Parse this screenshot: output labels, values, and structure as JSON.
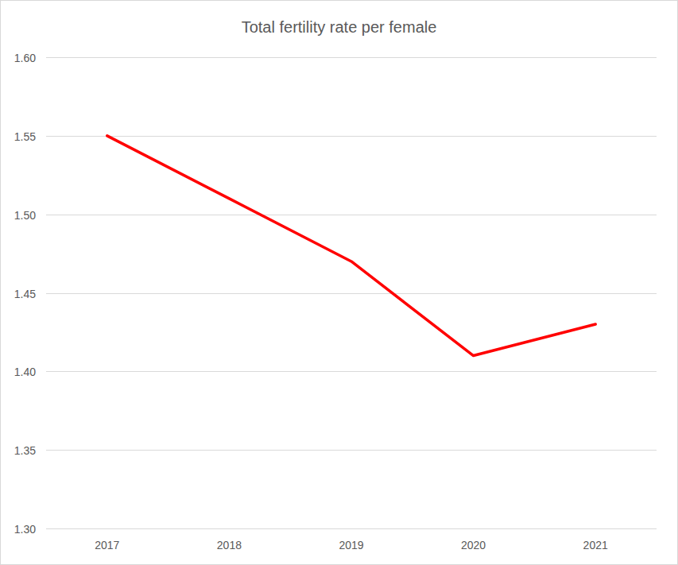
{
  "chart_data": {
    "type": "line",
    "title": "Total fertility rate per female",
    "categories": [
      "2017",
      "2018",
      "2019",
      "2020",
      "2021"
    ],
    "values": [
      1.55,
      1.51,
      1.47,
      1.41,
      1.43
    ],
    "color": "#ff0000",
    "ylim": [
      1.3,
      1.6
    ],
    "yticks": [
      {
        "value": 1.3,
        "label": "1.30"
      },
      1.35,
      {
        "value": 1.4,
        "label": "1.40"
      },
      1.45,
      {
        "value": 1.5,
        "label": "1.50"
      },
      1.55,
      {
        "value": 1.6,
        "label": "1.60"
      }
    ],
    "grid": true
  }
}
